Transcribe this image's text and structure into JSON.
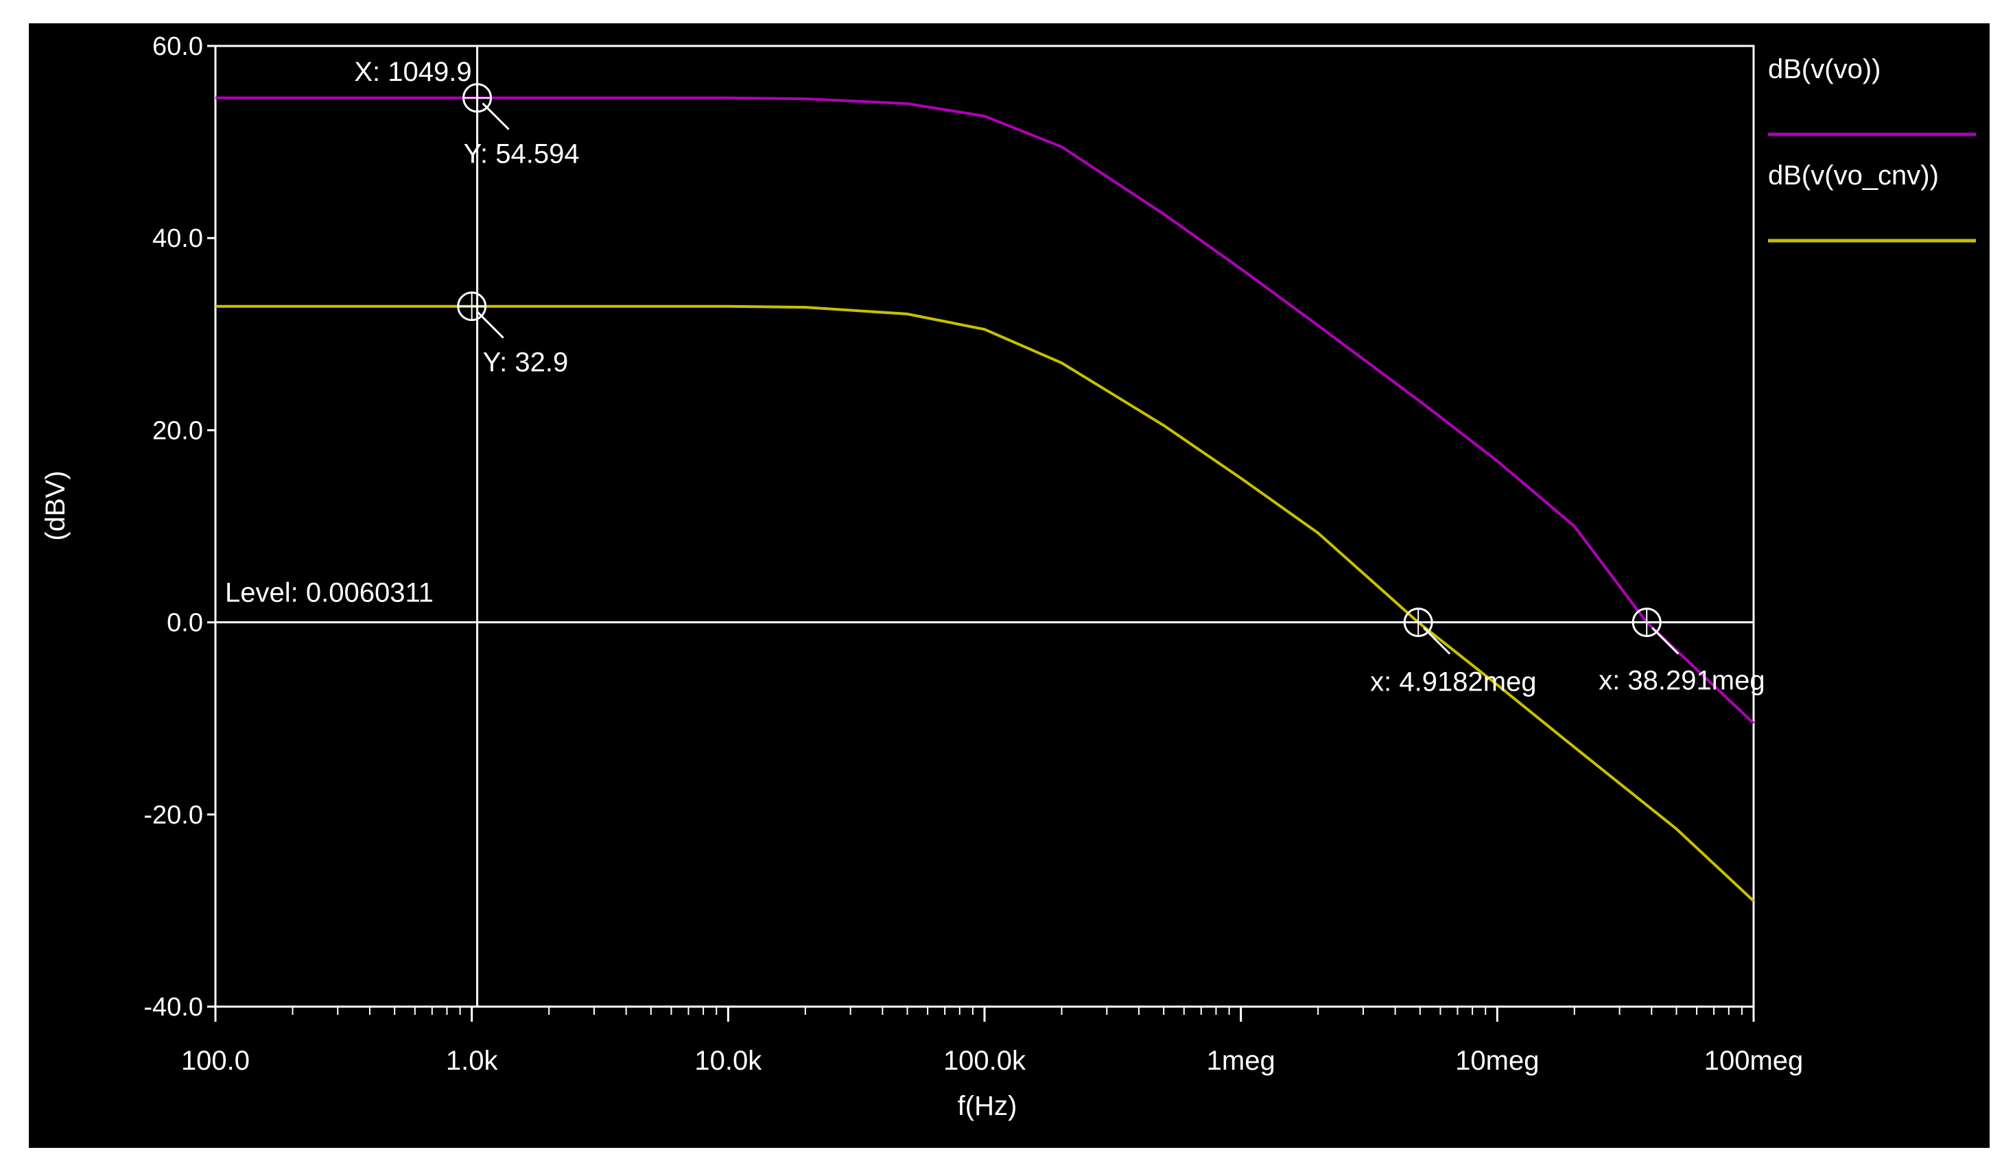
{
  "chart_data": {
    "type": "line",
    "xlabel": "f(Hz)",
    "ylabel": "(dBV)",
    "x_scale": "log",
    "xlim": [
      100,
      100000000
    ],
    "ylim": [
      -40,
      60
    ],
    "x_ticks": [
      {
        "value": 100,
        "label": "100.0"
      },
      {
        "value": 1000,
        "label": "1.0k"
      },
      {
        "value": 10000,
        "label": "10.0k"
      },
      {
        "value": 100000,
        "label": "100.0k"
      },
      {
        "value": 1000000,
        "label": "1meg"
      },
      {
        "value": 10000000,
        "label": "10meg"
      },
      {
        "value": 100000000,
        "label": "100meg"
      }
    ],
    "y_ticks": [
      {
        "value": 60,
        "label": "60.0"
      },
      {
        "value": 40,
        "label": "40.0"
      },
      {
        "value": 20,
        "label": "20.0"
      },
      {
        "value": 0,
        "label": "0.0"
      },
      {
        "value": -20,
        "label": "-20.0"
      },
      {
        "value": -40,
        "label": "-40.0"
      }
    ],
    "grid": false,
    "legend_position": "right",
    "series": [
      {
        "name": "dB(v(vo))",
        "color": "#b000b8",
        "x": [
          100,
          1000,
          10000,
          20000,
          50000,
          100000,
          200000,
          500000,
          1000000,
          2000000,
          5000000,
          10000000,
          20000000,
          38291000,
          100000000
        ],
        "y": [
          54.6,
          54.6,
          54.6,
          54.5,
          54.0,
          52.7,
          49.5,
          42.5,
          36.8,
          30.9,
          23.0,
          16.8,
          10.0,
          0.0,
          -10.5
        ]
      },
      {
        "name": "dB(v(vo_cnv))",
        "color": "#c8c000",
        "x": [
          100,
          1000,
          10000,
          20000,
          50000,
          100000,
          200000,
          500000,
          1000000,
          2000000,
          4918200,
          10000000,
          20000000,
          50000000,
          100000000
        ],
        "y": [
          32.9,
          32.9,
          32.9,
          32.8,
          32.1,
          30.5,
          27.0,
          20.5,
          15.0,
          9.3,
          0.0,
          -6.5,
          -13.0,
          -21.5,
          -29.0
        ]
      }
    ],
    "cursor": {
      "x_label": "X: 1049.9",
      "x_value": 1049.9,
      "level_label": "Level: 0.0060311",
      "level_value": 0.0060311
    },
    "markers": [
      {
        "series": 0,
        "x": 1049.9,
        "y": 54.594,
        "label": "Y: 54.594"
      },
      {
        "series": 1,
        "x": 1000,
        "y": 32.9,
        "label": "Y: 32.9"
      },
      {
        "series": 1,
        "x": 4918200,
        "y": 0,
        "label": "x: 4.9182meg"
      },
      {
        "series": 0,
        "x": 38291000,
        "y": 0,
        "label": "x: 38.291meg"
      }
    ]
  }
}
